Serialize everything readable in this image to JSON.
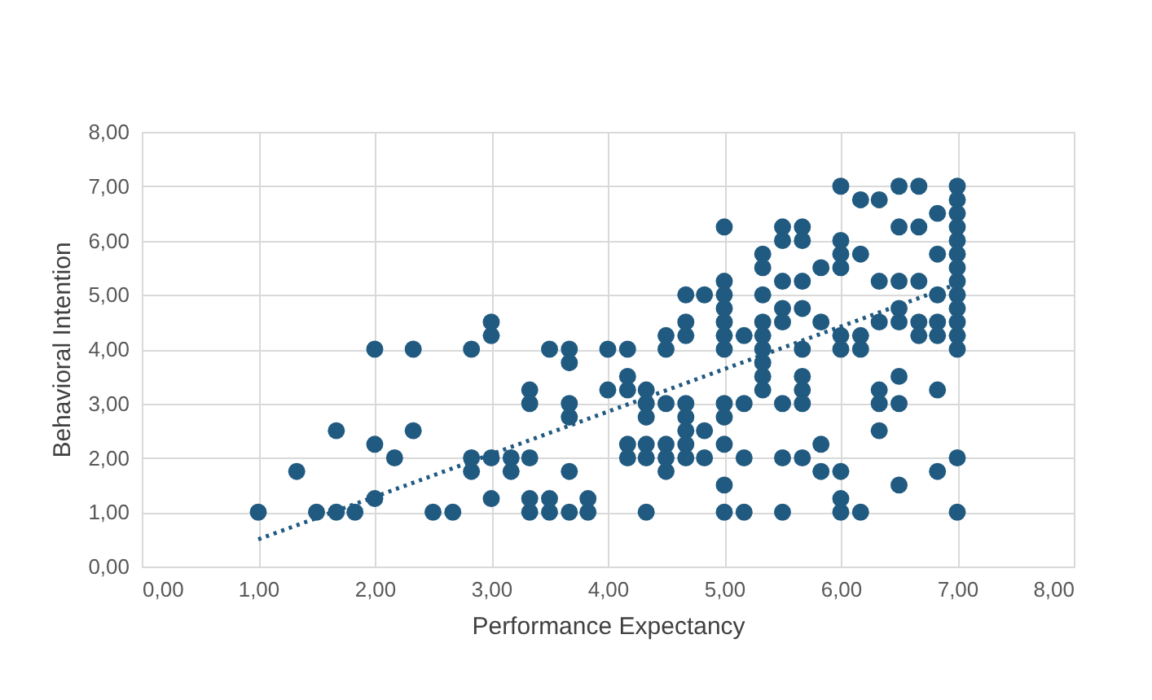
{
  "chart_data": {
    "type": "scatter",
    "xlabel": "Performance Expectancy",
    "ylabel": "Behavioral Intention",
    "xlim": [
      0,
      8
    ],
    "ylim": [
      0,
      8
    ],
    "xticks": [
      {
        "value": 0,
        "label": "0,00"
      },
      {
        "value": 1,
        "label": "1,00"
      },
      {
        "value": 2,
        "label": "2,00"
      },
      {
        "value": 3,
        "label": "3,00"
      },
      {
        "value": 4,
        "label": "4,00"
      },
      {
        "value": 5,
        "label": "5,00"
      },
      {
        "value": 6,
        "label": "6,00"
      },
      {
        "value": 7,
        "label": "7,00"
      },
      {
        "value": 8,
        "label": "8,00"
      }
    ],
    "yticks": [
      {
        "value": 0,
        "label": "0,00"
      },
      {
        "value": 1,
        "label": "1,00"
      },
      {
        "value": 2,
        "label": "2,00"
      },
      {
        "value": 3,
        "label": "3,00"
      },
      {
        "value": 4,
        "label": "4,00"
      },
      {
        "value": 5,
        "label": "5,00"
      },
      {
        "value": 6,
        "label": "6,00"
      },
      {
        "value": 7,
        "label": "7,00"
      },
      {
        "value": 8,
        "label": "8,00"
      }
    ],
    "grid": true,
    "series": [
      {
        "color": "#215a80",
        "marker": "circle",
        "x": [
          1,
          1.33,
          1.5,
          1.67,
          1.67,
          1.83,
          2,
          2,
          2,
          2.17,
          2.33,
          2.33,
          2.5,
          2.67,
          2.83,
          2.83,
          2.83,
          3,
          3,
          3,
          3,
          3.17,
          3.17,
          3.33,
          3.33,
          3.33,
          3.33,
          3.33,
          3.5,
          3.5,
          3.5,
          3.67,
          3.67,
          3.67,
          3.67,
          3.67,
          3.67,
          3.83,
          3.83,
          4,
          4,
          4.17,
          4.17,
          4.17,
          4.17,
          4.17,
          4.33,
          4.33,
          4.33,
          4.33,
          4.33,
          4.33,
          4.5,
          4.5,
          4.5,
          4.5,
          4.5,
          4.5,
          4.67,
          4.67,
          4.67,
          4.67,
          4.67,
          4.67,
          4.67,
          4.67,
          4.83,
          4.83,
          4.83,
          5,
          5,
          5,
          5,
          5,
          5,
          5,
          5,
          5,
          5,
          5,
          5,
          5.17,
          5.17,
          5.17,
          5.17,
          5.33,
          5.33,
          5.33,
          5.33,
          5.33,
          5.33,
          5.33,
          5.33,
          5.33,
          5.5,
          5.5,
          5.5,
          5.5,
          5.5,
          5.5,
          5.5,
          5.5,
          5.67,
          5.67,
          5.67,
          5.67,
          5.67,
          5.67,
          5.67,
          5.67,
          5.67,
          5.83,
          5.83,
          5.83,
          5.83,
          6,
          6,
          6,
          6,
          6,
          6,
          6,
          6,
          6,
          6.17,
          6.17,
          6.17,
          6.17,
          6.17,
          6.33,
          6.33,
          6.33,
          6.33,
          6.33,
          6.33,
          6.5,
          6.5,
          6.5,
          6.5,
          6.5,
          6.5,
          6.5,
          6.5,
          6.67,
          6.67,
          6.67,
          6.67,
          6.67,
          6.83,
          6.83,
          6.83,
          6.83,
          6.83,
          6.83,
          6.83,
          7,
          7,
          7,
          7,
          7,
          7,
          7,
          7,
          7,
          7,
          7,
          7,
          7,
          7,
          7
        ],
        "values": [
          1,
          1.75,
          1,
          2.5,
          1,
          1,
          4,
          2.25,
          1.25,
          2,
          4,
          2.5,
          1,
          1,
          4,
          2,
          1.75,
          4.5,
          4.25,
          2,
          1.25,
          2,
          1.75,
          3.25,
          3,
          2,
          1.25,
          1,
          4,
          1.25,
          1,
          4,
          3.75,
          3,
          2.75,
          1.75,
          1,
          1.25,
          1,
          4,
          3.25,
          4,
          3.5,
          3.25,
          2.25,
          2,
          3.25,
          3,
          2.75,
          2.25,
          2,
          1,
          4.25,
          4,
          3,
          2.25,
          2,
          1.75,
          5,
          4.5,
          4.25,
          3,
          2.75,
          2.5,
          2.25,
          2,
          5,
          2.5,
          2,
          6.25,
          5.25,
          5,
          4.75,
          4.5,
          4.25,
          4,
          3,
          2.75,
          2.25,
          1.5,
          1,
          4.25,
          3,
          2,
          1,
          5.75,
          5.5,
          5,
          4.5,
          4.25,
          4,
          3.75,
          3.5,
          3.25,
          6.25,
          6,
          5.25,
          4.75,
          4.5,
          3,
          2,
          1,
          6.25,
          6,
          5.25,
          4.75,
          4,
          3.5,
          3.25,
          3,
          2,
          5.5,
          4.5,
          2.25,
          1.75,
          7,
          6,
          5.75,
          5.5,
          4.25,
          4,
          1.75,
          1.25,
          1,
          6.75,
          5.75,
          4.25,
          4,
          1,
          6.75,
          5.25,
          4.5,
          3.25,
          3,
          2.5,
          7,
          6.25,
          5.25,
          4.75,
          4.5,
          3.5,
          3,
          1.5,
          7,
          6.25,
          5.25,
          4.5,
          4.25,
          6.5,
          5.75,
          5,
          4.5,
          4.25,
          3.25,
          1.75,
          7,
          6.75,
          6.5,
          6.25,
          6,
          5.75,
          5.5,
          5.25,
          5,
          4.75,
          4.5,
          4.25,
          4,
          2,
          1
        ]
      },
      {
        "type": "line",
        "color": "#215a80",
        "line_style": "dotted",
        "marker": "none",
        "x": [
          1,
          7
        ],
        "values": [
          0.5,
          5.2
        ]
      }
    ]
  }
}
